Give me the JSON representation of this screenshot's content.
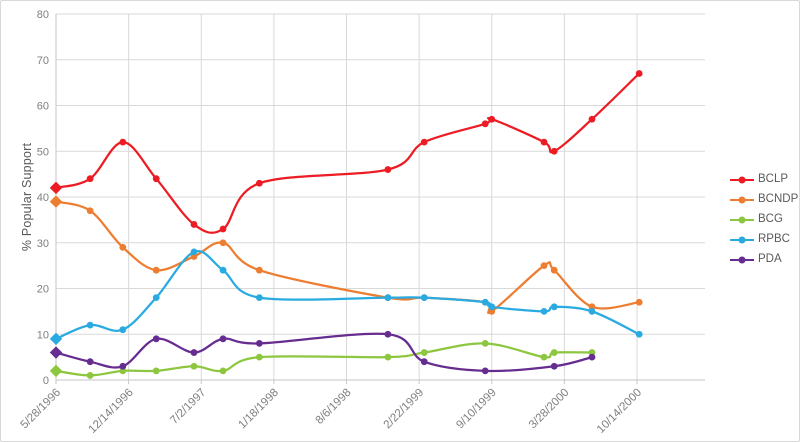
{
  "chart_data": {
    "type": "line",
    "title": "",
    "xlabel": "",
    "ylabel": "% Popular Support",
    "ylim": [
      0,
      80
    ],
    "yticks": [
      0,
      10,
      20,
      30,
      40,
      50,
      60,
      70,
      80
    ],
    "xtick_labels": [
      "5/28/1996",
      "12/14/1996",
      "7/2/1997",
      "1/18/1998",
      "8/6/1998",
      "2/22/1999",
      "9/10/1999",
      "3/28/2000",
      "10/14/2000"
    ],
    "x_unit": "tick-index (0 = 5/28/1996 tick, 1 unit = one labeled tick interval)",
    "xlim": [
      0,
      8.94
    ],
    "grid": true,
    "smoothed_lines": true,
    "first_point_marker": "diamond",
    "marker": "circle",
    "legend_position": "right",
    "legend": [
      "BCLP",
      "BCNDP",
      "BCG",
      "RPBC",
      "PDA"
    ],
    "series": [
      {
        "name": "BCLP",
        "color": "#ED1C24",
        "points": [
          [
            0,
            42
          ],
          [
            0.47,
            44
          ],
          [
            0.92,
            52
          ],
          [
            1.38,
            44
          ],
          [
            1.9,
            34
          ],
          [
            2.3,
            33
          ],
          [
            2.8,
            43
          ],
          [
            4.57,
            46
          ],
          [
            5.07,
            52
          ],
          [
            5.91,
            56
          ],
          [
            6.0,
            57
          ],
          [
            6.72,
            52
          ],
          [
            6.86,
            50
          ],
          [
            7.38,
            57
          ],
          [
            8.03,
            67
          ]
        ]
      },
      {
        "name": "BCNDP",
        "color": "#ED7D31",
        "points": [
          [
            0,
            39
          ],
          [
            0.47,
            37
          ],
          [
            0.92,
            29
          ],
          [
            1.38,
            24
          ],
          [
            1.9,
            27
          ],
          [
            2.3,
            30
          ],
          [
            2.8,
            24
          ],
          [
            4.57,
            18
          ],
          [
            5.07,
            18
          ],
          [
            5.91,
            17
          ],
          [
            6.0,
            15
          ],
          [
            6.72,
            25
          ],
          [
            6.86,
            24
          ],
          [
            7.38,
            16
          ],
          [
            8.03,
            17
          ]
        ]
      },
      {
        "name": "BCG",
        "color": "#8DC63F",
        "points": [
          [
            0,
            2
          ],
          [
            0.47,
            1
          ],
          [
            0.92,
            2
          ],
          [
            1.38,
            2
          ],
          [
            1.9,
            3
          ],
          [
            2.3,
            2
          ],
          [
            2.8,
            5
          ],
          [
            4.57,
            5
          ],
          [
            5.07,
            6
          ],
          [
            5.91,
            8
          ],
          [
            6.72,
            5
          ],
          [
            6.86,
            6
          ],
          [
            7.38,
            6
          ]
        ]
      },
      {
        "name": "RPBC",
        "color": "#29ABE2",
        "points": [
          [
            0,
            9
          ],
          [
            0.47,
            12
          ],
          [
            0.92,
            11
          ],
          [
            1.38,
            18
          ],
          [
            1.9,
            28
          ],
          [
            2.3,
            24
          ],
          [
            2.8,
            18
          ],
          [
            4.57,
            18
          ],
          [
            5.07,
            18
          ],
          [
            5.91,
            17
          ],
          [
            6.0,
            16
          ],
          [
            6.72,
            15
          ],
          [
            6.86,
            16
          ],
          [
            7.38,
            15
          ],
          [
            8.03,
            10
          ]
        ]
      },
      {
        "name": "PDA",
        "color": "#662D91",
        "points": [
          [
            0,
            6
          ],
          [
            0.47,
            4
          ],
          [
            0.92,
            3
          ],
          [
            1.38,
            9
          ],
          [
            1.9,
            6
          ],
          [
            2.3,
            9
          ],
          [
            2.8,
            8
          ],
          [
            4.57,
            10
          ],
          [
            5.07,
            4
          ],
          [
            5.91,
            2
          ],
          [
            6.86,
            3
          ],
          [
            7.38,
            5
          ]
        ]
      }
    ],
    "colors": {
      "background": "#FFFFFF",
      "border": "#D9D9D9",
      "grid": "#D9D9D9",
      "axis": "#C6C6C6",
      "tick_label": "#7F7F7F",
      "axis_title": "#595959",
      "legend_text": "#595959"
    }
  }
}
